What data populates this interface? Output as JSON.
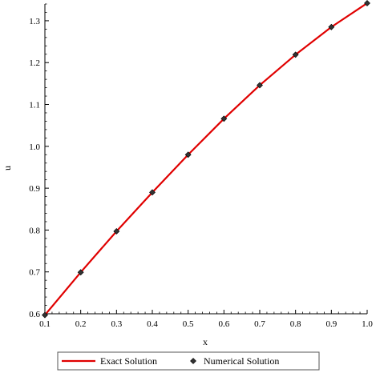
{
  "chart_data": {
    "type": "line",
    "xlabel": "x",
    "ylabel": "u",
    "xlim": [
      0.1,
      1.0
    ],
    "ylim": [
      0.6,
      1.34
    ],
    "x_ticks": [
      "0.1",
      "0.2",
      "0.3",
      "0.4",
      "0.5",
      "0.6",
      "0.7",
      "0.8",
      "0.9",
      "1.0"
    ],
    "y_ticks": [
      "0.6",
      "0.7",
      "0.8",
      "0.9",
      "1.0",
      "1.1",
      "1.2",
      "1.3"
    ],
    "grid": false,
    "legend_position": "bottom",
    "series": [
      {
        "name": "Exact Solution",
        "kind": "line",
        "color": "#e00000",
        "x": [
          0.1,
          0.2,
          0.3,
          0.4,
          0.5,
          0.6,
          0.7,
          0.8,
          0.9,
          1.0
        ],
        "y": [
          0.597,
          0.699,
          0.797,
          0.89,
          0.98,
          1.066,
          1.146,
          1.219,
          1.285,
          1.342
        ]
      },
      {
        "name": "Numerical Solution",
        "kind": "scatter",
        "marker": "diamond",
        "color": "#333333",
        "x": [
          0.1,
          0.2,
          0.3,
          0.4,
          0.5,
          0.6,
          0.7,
          0.8,
          0.9,
          1.0
        ],
        "y": [
          0.597,
          0.699,
          0.797,
          0.89,
          0.98,
          1.066,
          1.146,
          1.219,
          1.285,
          1.342
        ]
      }
    ]
  }
}
